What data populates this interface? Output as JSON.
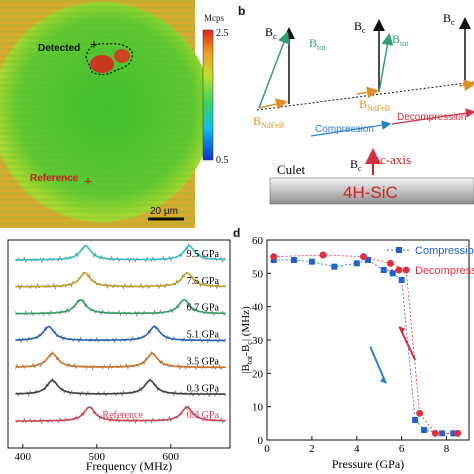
{
  "panel_labels": {
    "b": "b",
    "d": "d"
  },
  "map": {
    "colorbar_unit": "Mcps",
    "colorbar_max": "2.5",
    "colorbar_min": "0.5",
    "colors": [
      "#1030d0",
      "#10c0f0",
      "#40d060",
      "#c0e030",
      "#f0a020",
      "#e02020"
    ],
    "detected_label": "Detected",
    "reference_label": "Reference",
    "scalebar_label": "20 μm"
  },
  "vectors": {
    "bc": "B",
    "bc_sub": "c",
    "btot": "B",
    "btot_sub": "tot",
    "bndfeb": "B",
    "bndfeb_sub": "NdFeB",
    "compression": "Compression",
    "decompression": "Decompression",
    "culet": "Culet",
    "caxis": "c-axis",
    "crystal": "4H-SiC"
  },
  "chart_data": [
    {
      "type": "line",
      "xlabel": "Frequency (MHz)",
      "ylabel": "",
      "xlim": [
        380,
        680
      ],
      "xticks": [
        400,
        500,
        600
      ],
      "series": [
        {
          "name": "9.5 GPa",
          "color": "#30c0c0",
          "dips": [
            485,
            625
          ]
        },
        {
          "name": "7.5 GPa",
          "color": "#c0a020",
          "dips": [
            484,
            622
          ]
        },
        {
          "name": "6.7 GPa",
          "color": "#30a060",
          "dips": [
            478,
            618
          ]
        },
        {
          "name": "5.1 GPa",
          "color": "#2060c0",
          "dips": [
            435,
            578
          ]
        },
        {
          "name": "3.5 GPa",
          "color": "#d07020",
          "dips": [
            440,
            575
          ]
        },
        {
          "name": "0.3 GPa",
          "color": "#404040",
          "dips": [
            440,
            572
          ]
        },
        {
          "name": "0.3 GPa",
          "color": "#d04050",
          "dips": [
            490,
            622
          ]
        }
      ],
      "reference_label": "Reference"
    },
    {
      "type": "scatter",
      "xlabel": "Pressure (GPa)",
      "ylabel": "|B_tot - B_c| (MHz)",
      "ylabel_parts": {
        "a": "|B",
        "b": "tot",
        "c": "-B",
        "d": "c",
        "e": "| (MHz)"
      },
      "xlim": [
        0,
        9
      ],
      "ylim": [
        0,
        60
      ],
      "xticks": [
        0,
        2,
        4,
        6,
        8
      ],
      "yticks": [
        0,
        10,
        20,
        30,
        40,
        50,
        60
      ],
      "series": [
        {
          "name": "Compression",
          "color": "#2060d0",
          "marker": "square",
          "x": [
            0.3,
            1.2,
            2.0,
            3.0,
            4.0,
            4.5,
            5.2,
            5.6,
            6.0,
            6.6,
            7.0,
            7.8,
            8.3
          ],
          "y": [
            54,
            54,
            53.5,
            52,
            53,
            54,
            51,
            50,
            48,
            6,
            3,
            2,
            2
          ]
        },
        {
          "name": "Decompression",
          "color": "#e03040",
          "marker": "circle",
          "x": [
            0.3,
            2.5,
            4.3,
            5.5,
            6.2,
            6.8,
            7.5,
            8.5
          ],
          "y": [
            55,
            55.5,
            55,
            53,
            51,
            8,
            2,
            2
          ]
        }
      ]
    }
  ]
}
